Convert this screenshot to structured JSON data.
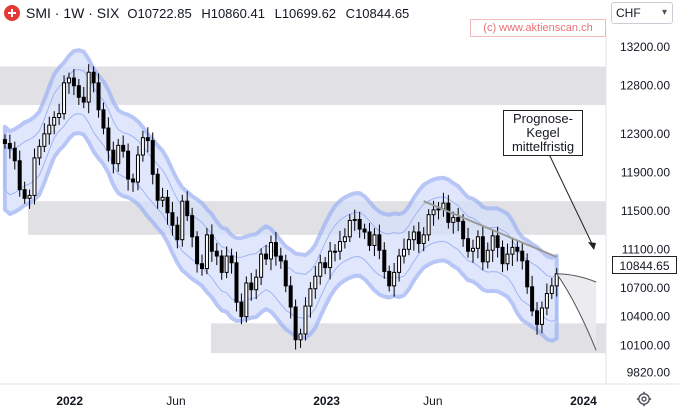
{
  "header": {
    "symbol": "SMI · 1W · SIX",
    "open_label": "O",
    "open": "10722.85",
    "high_label": "H",
    "high": "10860.41",
    "low_label": "L",
    "low": "10699.62",
    "close_label": "C",
    "close": "10844.65"
  },
  "copyright": "(c) www.aktienscan.ch",
  "currency": "CHF",
  "annotation": "Prognose-Kegel mittelfristig",
  "last_price_label": "10844.65",
  "icons": {
    "logo": "swiss-flag-icon",
    "settings": "gear-icon",
    "dropdown": "chevron-down-icon"
  },
  "colors": {
    "candle": "#000000",
    "band_fill": "#d6e0fb",
    "band_edge": "#9fb4f4",
    "zone_fill": "#d9d9df",
    "trendline": "#9a9a9a",
    "text": "#131722"
  },
  "chart_data": {
    "type": "candlestick",
    "title": "",
    "x_tick_labels": [
      "2022",
      "Jun",
      "2023",
      "Jun",
      "2024"
    ],
    "y_tick_labels": [
      "13200.00",
      "12800.00",
      "12300.00",
      "11900.00",
      "11500.00",
      "11100.00",
      "10700.00",
      "10400.00",
      "10100.00",
      "9820.00"
    ],
    "y_ticks": [
      13200,
      12800,
      12300,
      11900,
      11500,
      11100,
      10700,
      10400,
      10100,
      9820
    ],
    "y_range": [
      9700,
      13400
    ],
    "x_range": [
      "2021-09-24",
      "2024-02-02"
    ],
    "grid": false,
    "approximate_weekly_close": [
      12200,
      12150,
      12020,
      11720,
      11630,
      11660,
      12050,
      12170,
      12300,
      12390,
      12470,
      12510,
      12830,
      12880,
      12800,
      12680,
      12630,
      12940,
      12830,
      12550,
      12360,
      12130,
      11990,
      12180,
      12120,
      11830,
      11800,
      12080,
      12260,
      12230,
      11880,
      11610,
      11640,
      11480,
      11350,
      11200,
      11600,
      11450,
      11230,
      10950,
      10900,
      11250,
      11080,
      11030,
      10860,
      11030,
      10960,
      10550,
      10400,
      10750,
      10680,
      10810,
      11050,
      11000,
      11170,
      11030,
      10980,
      10720,
      10500,
      10160,
      10220,
      10510,
      10690,
      10820,
      10960,
      10910,
      11080,
      11080,
      11180,
      11230,
      11400,
      11410,
      11310,
      11280,
      11140,
      11250,
      11090,
      10870,
      10720,
      10860,
      11030,
      11100,
      11200,
      11280,
      11160,
      11250,
      11460,
      11510,
      11520,
      11580,
      11380,
      11430,
      11390,
      11210,
      11080,
      11110,
      11230,
      10970,
      11090,
      11240,
      11120,
      10950,
      11050,
      11120,
      11080,
      10980,
      10710,
      10460,
      10320,
      10490,
      10640,
      10720,
      10845
    ],
    "resistance_zones": [
      [
        12600,
        13000
      ],
      [
        11250,
        11600
      ]
    ],
    "support_zone": [
      10020,
      10330
    ],
    "trendline": {
      "from": [
        "2023-05-19",
        11600
      ],
      "to": [
        "2023-11-24",
        11020
      ]
    },
    "forecast_cone": {
      "start": [
        "2023-11-24",
        10845
      ],
      "upper_end": [
        "2024-01-19",
        10760
      ],
      "lower_end": [
        "2024-01-19",
        10050
      ]
    }
  }
}
